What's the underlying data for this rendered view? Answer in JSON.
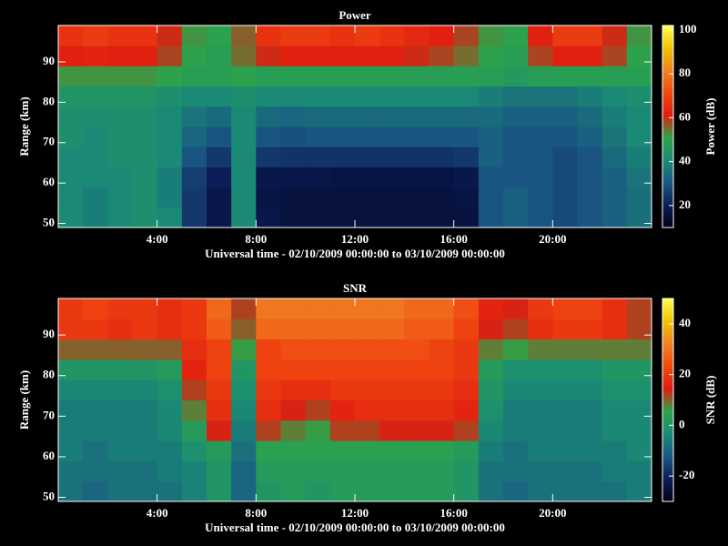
{
  "chart_data": [
    {
      "type": "heatmap",
      "title": "Power",
      "xlabel": "Universal time - 02/10/2009 00:00:00 to 03/10/2009 00:00:00",
      "ylabel": "Range (km)",
      "zlabel": "Power (dB)",
      "x": [
        0.5,
        1.5,
        2.5,
        3.5,
        4.5,
        5.5,
        6.5,
        7.5,
        8.5,
        9.5,
        10.5,
        11.5,
        12.5,
        13.5,
        14.5,
        15.5,
        16.5,
        17.5,
        18.5,
        19.5,
        20.5,
        21.5,
        22.5,
        23.5
      ],
      "y": [
        51.5,
        56.5,
        61.5,
        66.5,
        71.5,
        76.5,
        81.5,
        86.5,
        91.5,
        96.5
      ],
      "values": [
        [
          40,
          38,
          40,
          42,
          40,
          25,
          18,
          40,
          18,
          16,
          16,
          16,
          16,
          16,
          16,
          16,
          16,
          30,
          32,
          30,
          28,
          30,
          32,
          35
        ],
        [
          40,
          38,
          40,
          42,
          38,
          25,
          18,
          40,
          17,
          16,
          16,
          16,
          16,
          16,
          16,
          16,
          17,
          30,
          32,
          30,
          28,
          30,
          32,
          35
        ],
        [
          40,
          40,
          40,
          42,
          38,
          26,
          20,
          40,
          18,
          18,
          18,
          17,
          17,
          17,
          17,
          17,
          18,
          30,
          30,
          30,
          28,
          30,
          32,
          36
        ],
        [
          40,
          40,
          42,
          42,
          40,
          30,
          25,
          40,
          25,
          24,
          24,
          24,
          24,
          24,
          24,
          24,
          25,
          32,
          30,
          30,
          28,
          30,
          34,
          38
        ],
        [
          42,
          40,
          42,
          42,
          40,
          33,
          30,
          40,
          30,
          29,
          30,
          30,
          30,
          30,
          30,
          30,
          30,
          32,
          30,
          30,
          30,
          32,
          36,
          40
        ],
        [
          42,
          42,
          42,
          42,
          40,
          36,
          34,
          40,
          34,
          33,
          34,
          34,
          34,
          34,
          34,
          34,
          34,
          34,
          32,
          32,
          32,
          34,
          38,
          40
        ],
        [
          44,
          44,
          44,
          44,
          42,
          40,
          40,
          42,
          40,
          40,
          40,
          40,
          40,
          40,
          40,
          40,
          40,
          38,
          36,
          36,
          36,
          38,
          40,
          42
        ],
        [
          52,
          52,
          52,
          52,
          50,
          48,
          48,
          50,
          48,
          48,
          48,
          48,
          48,
          48,
          48,
          48,
          48,
          48,
          46,
          48,
          48,
          48,
          48,
          48
        ],
        [
          62,
          63,
          62,
          62,
          58,
          50,
          48,
          55,
          60,
          62,
          62,
          62,
          62,
          62,
          60,
          58,
          55,
          50,
          48,
          58,
          62,
          62,
          58,
          50
        ],
        [
          66,
          68,
          66,
          66,
          60,
          52,
          50,
          56,
          66,
          68,
          68,
          66,
          68,
          66,
          64,
          62,
          58,
          52,
          50,
          62,
          68,
          68,
          60,
          52
        ]
      ],
      "xlim": [
        0,
        24
      ],
      "xticks": [
        {
          "value": 4,
          "label": "4:00"
        },
        {
          "value": 8,
          "label": "8:00"
        },
        {
          "value": 12,
          "label": "12:00"
        },
        {
          "value": 16,
          "label": "16:00"
        },
        {
          "value": 20,
          "label": "20:00"
        }
      ],
      "ylim": [
        49,
        99
      ],
      "yticks": [
        50,
        60,
        70,
        80,
        90
      ],
      "zlim": [
        10,
        102
      ],
      "zticks": [
        20,
        40,
        60,
        80,
        100
      ],
      "colormap": [
        "#000018",
        "#0c1e58",
        "#1a5882",
        "#1a8c74",
        "#2ea448",
        "#e01c10",
        "#f04a10",
        "#f08424",
        "#f0c400",
        "#ffff50"
      ]
    },
    {
      "type": "heatmap",
      "title": "SNR",
      "xlabel": "Universal time - 02/10/2009 00:00:00 to 03/10/2009 00:00:00",
      "ylabel": "Range (km)",
      "zlabel": "SNR (dB)",
      "x": [
        0.5,
        1.5,
        2.5,
        3.5,
        4.5,
        5.5,
        6.5,
        7.5,
        8.5,
        9.5,
        10.5,
        11.5,
        12.5,
        13.5,
        14.5,
        15.5,
        16.5,
        17.5,
        18.5,
        19.5,
        20.5,
        21.5,
        22.5,
        23.5
      ],
      "y": [
        51.5,
        56.5,
        61.5,
        66.5,
        71.5,
        76.5,
        81.5,
        86.5,
        91.5,
        96.5
      ],
      "values": [
        [
          -8,
          -10,
          -8,
          -8,
          -8,
          -5,
          0,
          -10,
          0,
          2,
          0,
          2,
          2,
          2,
          2,
          2,
          0,
          -8,
          -10,
          -8,
          -8,
          -8,
          -8,
          -6
        ],
        [
          -8,
          -8,
          -8,
          -8,
          -6,
          -5,
          0,
          -10,
          2,
          2,
          2,
          2,
          2,
          2,
          2,
          2,
          0,
          -8,
          -8,
          -8,
          -8,
          -8,
          -6,
          -6
        ],
        [
          -6,
          -8,
          -6,
          -6,
          -6,
          -2,
          2,
          -8,
          4,
          4,
          4,
          4,
          4,
          4,
          4,
          4,
          2,
          -6,
          -8,
          -6,
          -6,
          -6,
          -6,
          -4
        ],
        [
          -6,
          -6,
          -6,
          -6,
          -4,
          2,
          14,
          -6,
          12,
          8,
          6,
          12,
          12,
          14,
          14,
          14,
          12,
          -4,
          -6,
          -6,
          -6,
          -6,
          -4,
          -4
        ],
        [
          -6,
          -6,
          -6,
          -6,
          -4,
          8,
          18,
          -4,
          18,
          14,
          12,
          16,
          18,
          18,
          18,
          18,
          16,
          -2,
          -6,
          -6,
          -6,
          -6,
          -4,
          -4
        ],
        [
          -4,
          -4,
          -4,
          -4,
          -2,
          12,
          20,
          -2,
          20,
          18,
          18,
          20,
          20,
          20,
          20,
          20,
          18,
          0,
          -4,
          -4,
          -4,
          -4,
          -2,
          -2
        ],
        [
          0,
          0,
          0,
          0,
          2,
          16,
          22,
          0,
          22,
          22,
          22,
          22,
          22,
          22,
          22,
          22,
          20,
          2,
          -2,
          -2,
          -2,
          -2,
          0,
          0
        ],
        [
          10,
          10,
          10,
          10,
          10,
          18,
          22,
          6,
          22,
          24,
          24,
          24,
          24,
          24,
          24,
          22,
          20,
          8,
          6,
          8,
          8,
          8,
          8,
          8
        ],
        [
          20,
          20,
          18,
          20,
          18,
          20,
          26,
          10,
          28,
          28,
          28,
          28,
          28,
          28,
          26,
          26,
          22,
          14,
          12,
          18,
          20,
          20,
          18,
          12
        ],
        [
          20,
          22,
          20,
          20,
          18,
          20,
          28,
          12,
          30,
          30,
          30,
          30,
          30,
          30,
          28,
          28,
          24,
          16,
          14,
          20,
          22,
          22,
          18,
          12
        ]
      ],
      "xlim": [
        0,
        24
      ],
      "xticks": [
        {
          "value": 4,
          "label": "4:00"
        },
        {
          "value": 8,
          "label": "8:00"
        },
        {
          "value": 12,
          "label": "12:00"
        },
        {
          "value": 16,
          "label": "16:00"
        },
        {
          "value": 20,
          "label": "20:00"
        }
      ],
      "ylim": [
        49,
        99
      ],
      "yticks": [
        50,
        60,
        70,
        80,
        90
      ],
      "zlim": [
        -30,
        50
      ],
      "zticks": [
        -20,
        0,
        20,
        40
      ],
      "colormap": [
        "#000018",
        "#0c1e58",
        "#1a5882",
        "#1a8c74",
        "#2ea448",
        "#e01c10",
        "#f04a10",
        "#f08424",
        "#f0c400",
        "#ffff50"
      ]
    }
  ]
}
